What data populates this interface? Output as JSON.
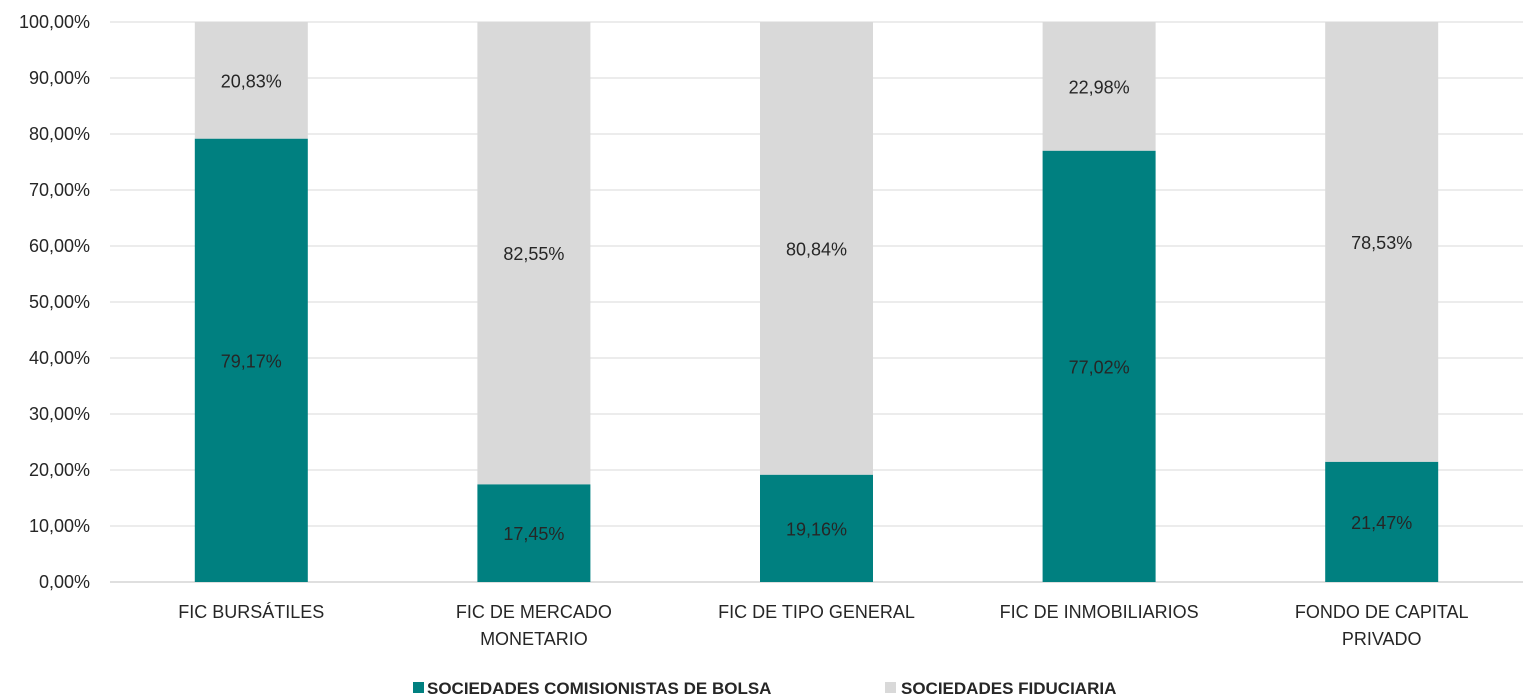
{
  "chart_data": {
    "type": "bar",
    "stacked": true,
    "categories": [
      [
        "FIC BURSÁTILES"
      ],
      [
        "FIC DE MERCADO",
        "MONETARIO"
      ],
      [
        "FIC DE TIPO GENERAL"
      ],
      [
        "FIC DE INMOBILIARIOS"
      ],
      [
        "FONDO DE CAPITAL",
        "PRIVADO"
      ]
    ],
    "series": [
      {
        "name": "SOCIEDADES COMISIONISTAS DE BOLSA",
        "color": "#008080",
        "values": [
          79.17,
          17.45,
          19.16,
          77.02,
          21.47
        ],
        "labels": [
          "79,17%",
          "17,45%",
          "19,16%",
          "77,02%",
          "21,47%"
        ]
      },
      {
        "name": "SOCIEDADES FIDUCIARIA",
        "color": "#d9d9d9",
        "values": [
          20.83,
          82.55,
          80.84,
          22.98,
          78.53
        ],
        "labels": [
          "20,83%",
          "82,55%",
          "80,84%",
          "22,98%",
          "78,53%"
        ]
      }
    ],
    "yticks": [
      "0,00%",
      "10,00%",
      "20,00%",
      "30,00%",
      "40,00%",
      "50,00%",
      "60,00%",
      "70,00%",
      "80,00%",
      "90,00%",
      "100,00%"
    ],
    "ylim": [
      0,
      100
    ],
    "grid": true,
    "legend_position": "bottom"
  }
}
